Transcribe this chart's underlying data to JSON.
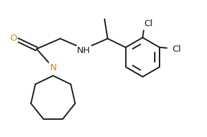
{
  "bg_color": "#ffffff",
  "line_color": "#1a1a1a",
  "color_N": "#d4850a",
  "color_O": "#d4850a",
  "color_Cl": "#1a1a1a",
  "color_NH": "#1a1a1a",
  "line_width": 1.4,
  "figsize": [
    3.01,
    1.99
  ],
  "dpi": 100,
  "xlim": [
    0,
    10
  ],
  "ylim": [
    0,
    6.6
  ]
}
